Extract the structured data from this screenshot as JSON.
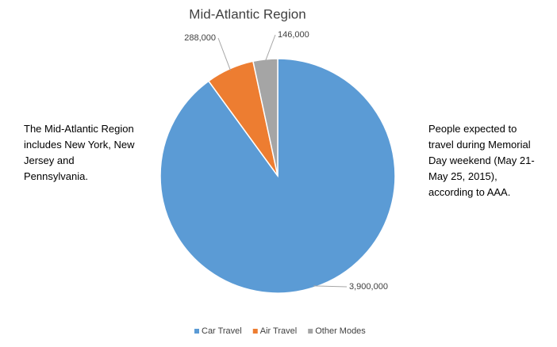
{
  "chart_data": {
    "type": "pie",
    "title": "Mid-Atlantic Region",
    "categories": [
      "Car Travel",
      "Air Travel",
      "Other Modes"
    ],
    "values": [
      3900000,
      288000,
      146000
    ],
    "value_labels": [
      "3,900,000",
      "288,000",
      "146,000"
    ],
    "colors": [
      "#5b9bd5",
      "#ed7d31",
      "#a5a5a5"
    ],
    "legend": "bottom",
    "annotations": [
      {
        "text": "The Mid-Atlantic Region includes New York, New Jersey and Pennsylvania."
      },
      {
        "text": "People expected to travel during Memorial Day weekend (May 21-May 25, 2015), according to AAA."
      }
    ]
  }
}
